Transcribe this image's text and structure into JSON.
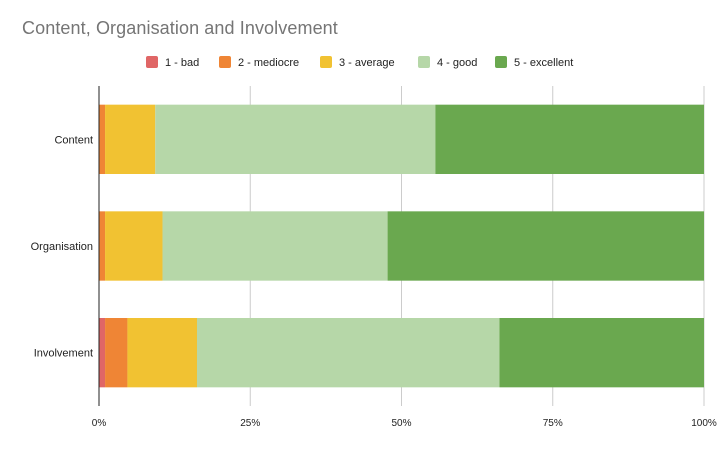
{
  "chart_data": {
    "type": "bar",
    "orientation": "horizontal",
    "stacked": "percent",
    "title": "Content, Organisation and Involvement",
    "categories": [
      "Content",
      "Organisation",
      "Involvement"
    ],
    "series": [
      {
        "name": "1 - bad",
        "color": "#e06666",
        "values": [
          0,
          0,
          1
        ]
      },
      {
        "name": "2 - mediocre",
        "color": "#ef8535",
        "values": [
          1,
          1,
          3.7
        ]
      },
      {
        "name": "3 - average",
        "color": "#f1c232",
        "values": [
          8.3,
          9.5,
          11.5
        ]
      },
      {
        "name": "4 - good",
        "color": "#b6d7a8",
        "values": [
          46.3,
          37.2,
          50
        ]
      },
      {
        "name": "5 - excellent",
        "color": "#6aa84f",
        "values": [
          44.4,
          52.3,
          33.8
        ]
      }
    ],
    "xlim": [
      0,
      100
    ],
    "x_ticks": [
      "0%",
      "25%",
      "50%",
      "75%",
      "100%"
    ],
    "grid": true,
    "legend_position": "top"
  }
}
